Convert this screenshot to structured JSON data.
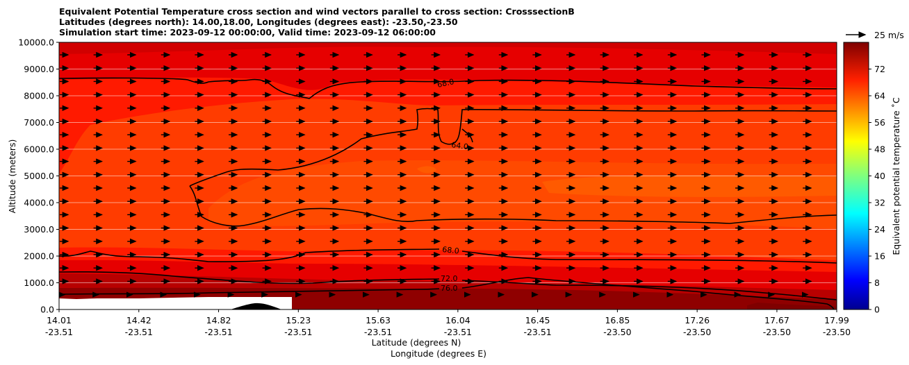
{
  "title": {
    "line1": "Equivalent Potential Temperature cross section and wind vectors parallel to cross section: CrosssectionB",
    "line2": "Latitudes (degrees north): 14.00,18.00, Longitudes (degrees east): -23.50,-23.50",
    "line3": "Simulation start time: 2023-09-12 00:00:00, Valid time: 2023-09-12 06:00:00"
  },
  "wind_key_label": "25 m/s",
  "colorbar_label": "Equivalent potential temperature ˚C",
  "chart_data": {
    "type": "heatmap",
    "ylabel": "Altitude (meters)",
    "xlabel_lat": "Latitude (degrees N)",
    "xlabel_lon": "Longitude (degrees E)",
    "ylim": [
      0,
      10000
    ],
    "yticks": [
      "0.0",
      "1000.0",
      "2000.0",
      "3000.0",
      "4000.0",
      "5000.0",
      "6000.0",
      "7000.0",
      "8000.0",
      "9000.0",
      "10000.0"
    ],
    "xticks_lat": [
      "14.01",
      "14.42",
      "14.82",
      "15.23",
      "15.63",
      "16.04",
      "16.45",
      "16.85",
      "17.26",
      "17.67",
      "17.99"
    ],
    "xticks_lon": [
      "-23.51",
      "-23.51",
      "-23.51",
      "-23.51",
      "-23.51",
      "-23.51",
      "-23.51",
      "-23.50",
      "-23.50",
      "-23.50",
      "-23.50"
    ],
    "grid": "horizontal",
    "colorbar": {
      "range": [
        0,
        80
      ],
      "ticks": [
        "0",
        "8",
        "16",
        "24",
        "32",
        "40",
        "48",
        "56",
        "64",
        "72"
      ],
      "colormap": "jet"
    },
    "contour_labels": [
      "68.0",
      "64.0",
      "68.0",
      "72.0",
      "76.0"
    ],
    "wind_key_speed_ms": 25
  }
}
